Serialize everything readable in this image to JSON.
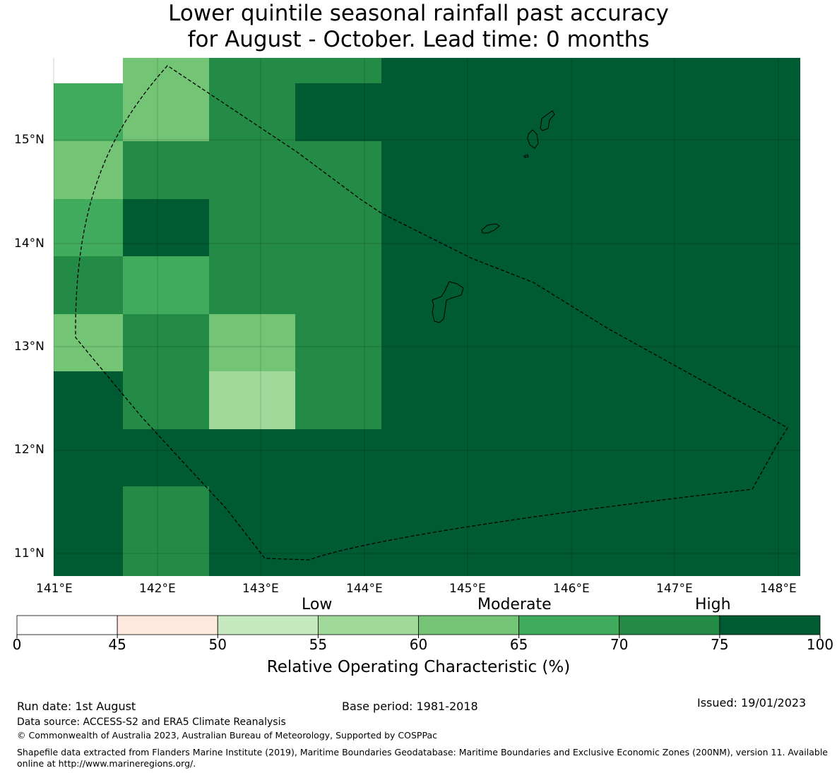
{
  "title": {
    "line1": "Lower quintile seasonal rainfall past accuracy",
    "line2": "for August - October. Lead time: 0 months"
  },
  "map": {
    "lat_labels": [
      "15°N",
      "14°N",
      "13°N",
      "12°N",
      "11°N"
    ],
    "lon_labels": [
      "141°E",
      "142°E",
      "143°E",
      "144°E",
      "145°E",
      "146°E",
      "147°E",
      "148°E"
    ],
    "bins": [
      0,
      45,
      50,
      55,
      60,
      65,
      70,
      75,
      100
    ],
    "colors": [
      "#ffffff",
      "#fde9de",
      "#c7e9c0",
      "#a1d99b",
      "#74c476",
      "#41ab5d",
      "#238b45",
      "#005a32"
    ],
    "grid_values": [
      [
        0,
        4,
        6,
        6,
        7,
        7,
        7,
        7,
        7,
        6
      ],
      [
        5,
        4,
        6,
        7,
        7,
        7,
        7,
        7,
        7,
        7
      ],
      [
        4,
        6,
        6,
        6,
        7,
        7,
        7,
        7,
        7,
        7
      ],
      [
        5,
        7,
        6,
        6,
        7,
        7,
        7,
        7,
        7,
        7
      ],
      [
        6,
        5,
        6,
        6,
        7,
        7,
        7,
        7,
        7,
        7
      ],
      [
        4,
        6,
        4,
        6,
        7,
        7,
        7,
        7,
        7,
        7
      ],
      [
        7,
        6,
        3,
        6,
        7,
        7,
        7,
        7,
        7,
        7
      ],
      [
        7,
        7,
        7,
        7,
        7,
        7,
        7,
        7,
        7,
        7
      ],
      [
        7,
        6,
        7,
        7,
        7,
        7,
        7,
        7,
        7,
        7
      ],
      [
        7,
        6,
        7,
        7,
        7,
        7,
        7,
        7,
        7,
        7
      ]
    ]
  },
  "colorbar": {
    "category_labels": [
      "Low",
      "Moderate",
      "High"
    ],
    "tick_labels": [
      "0",
      "45",
      "50",
      "55",
      "60",
      "65",
      "70",
      "75",
      "100"
    ],
    "label": "Relative Operating Characteristic (%)"
  },
  "footer": {
    "run_date": "Run date: 1st August",
    "base_period": "Base period: 1981-2018",
    "issued": "Issued: 19/01/2023",
    "data_source": "Data source: ACCESS-S2 and ERA5 Climate Reanalysis",
    "copyright": "© Commonwealth of Australia 2023, Australian Bureau of Meteorology, Supported by COSPPac",
    "shapefile_note": "Shapefile data extracted from Flanders Marine Institute (2019), Maritime Boundaries Geodatabase: Maritime Boundaries and Exclusive Economic Zones (200NM), version 11. Available online at http://www.marineregions.org/."
  }
}
